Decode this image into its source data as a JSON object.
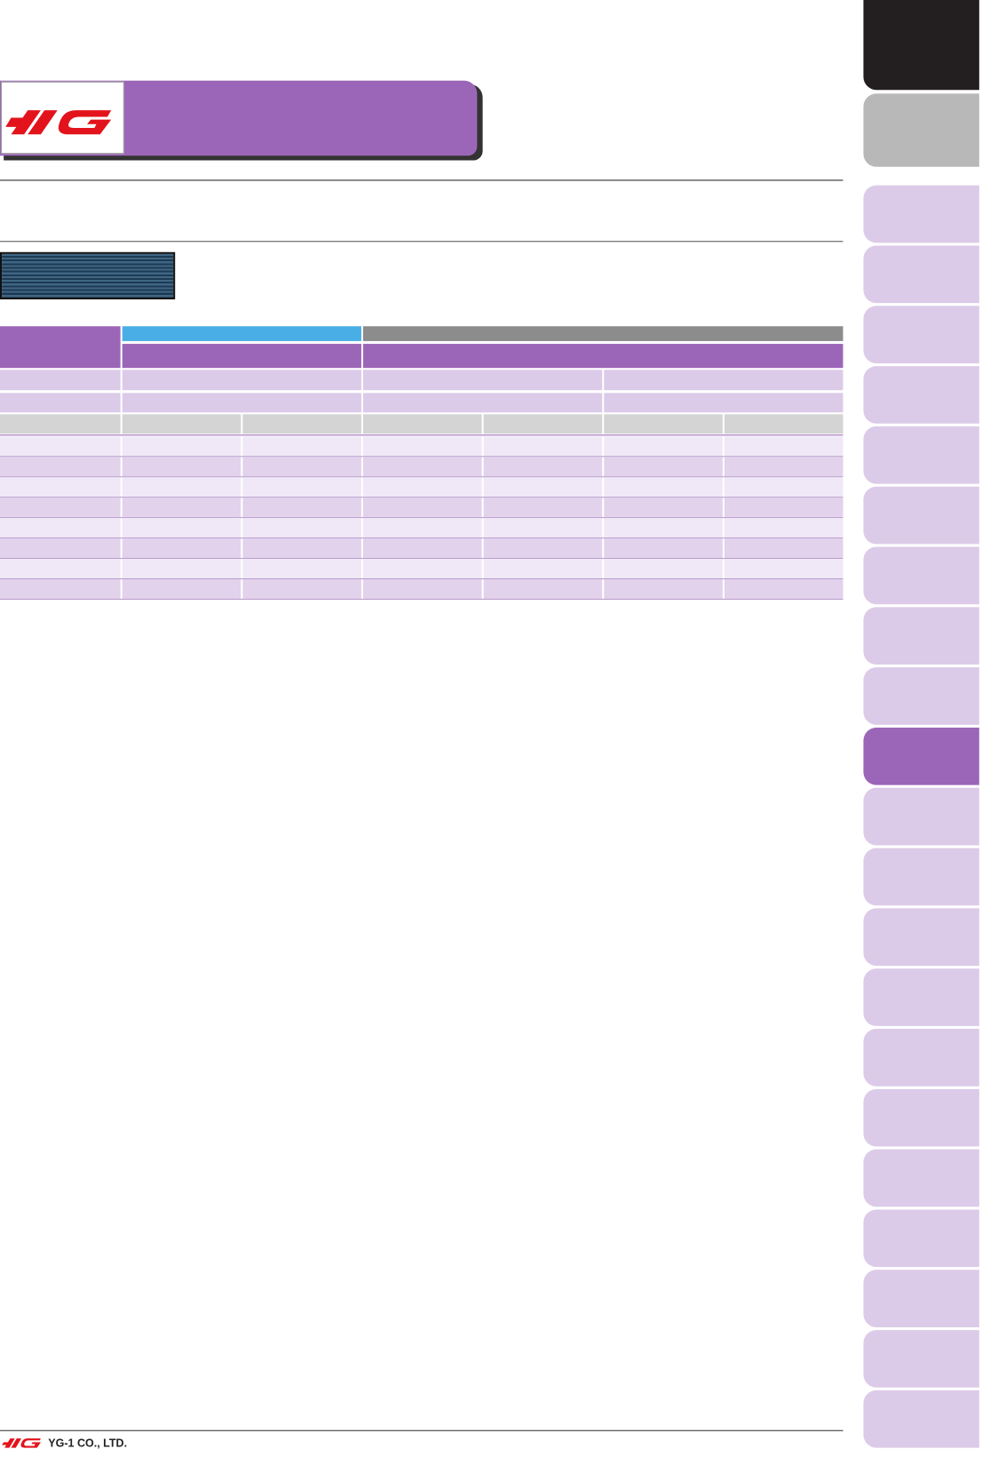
{
  "footer": {
    "company": "YG-1 CO., LTD."
  }
}
